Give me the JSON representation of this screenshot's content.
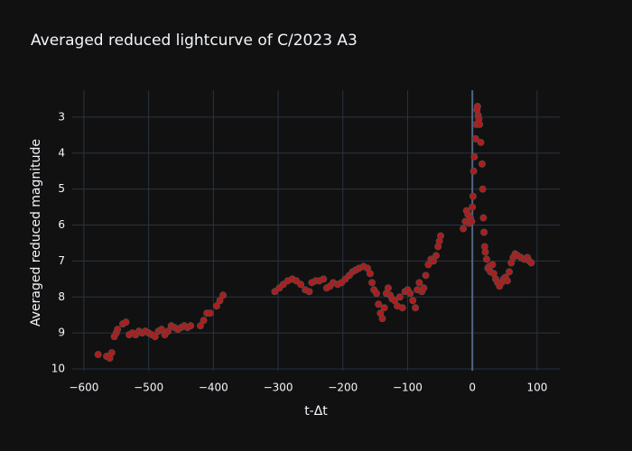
{
  "chart_data": {
    "type": "scatter",
    "title": "Averaged reduced lightcurve of C/2023 A3",
    "x_label": "t-Δt",
    "y_label": "Averaged reduced magnitude",
    "x": [
      -578,
      -565,
      -560,
      -557,
      -553,
      -550,
      -548,
      -540,
      -535,
      -530,
      -525,
      -520,
      -515,
      -510,
      -505,
      -500,
      -495,
      -490,
      -485,
      -480,
      -475,
      -470,
      -465,
      -460,
      -455,
      -450,
      -445,
      -440,
      -435,
      -420,
      -415,
      -410,
      -405,
      -395,
      -390,
      -385,
      -305,
      -298,
      -292,
      -285,
      -278,
      -272,
      -265,
      -258,
      -252,
      -248,
      -242,
      -236,
      -230,
      -225,
      -220,
      -215,
      -208,
      -202,
      -196,
      -190,
      -185,
      -180,
      -175,
      -168,
      -162,
      -158,
      -155,
      -152,
      -148,
      -145,
      -142,
      -139,
      -136,
      -133,
      -130,
      -127,
      -124,
      -120,
      -116,
      -112,
      -108,
      -104,
      -100,
      -96,
      -92,
      -88,
      -85,
      -82,
      -78,
      -75,
      -72,
      -68,
      -64,
      -60,
      -56,
      -53,
      -51,
      -49,
      -14,
      -11,
      -9,
      -7,
      -5,
      -3,
      -1,
      0,
      1,
      2,
      3,
      5,
      6,
      7,
      8,
      9,
      10,
      11,
      13,
      15,
      16,
      17,
      18,
      19,
      20,
      22,
      24,
      26,
      28,
      31,
      33,
      36,
      39,
      42,
      45,
      48,
      51,
      54,
      57,
      60,
      63,
      66,
      70,
      75,
      80,
      85,
      88,
      91
    ],
    "values": [
      9.6,
      9.65,
      9.7,
      9.55,
      9.1,
      9.0,
      8.9,
      8.75,
      8.7,
      9.05,
      9.0,
      9.05,
      8.95,
      9.0,
      8.95,
      9.0,
      9.05,
      9.1,
      8.95,
      8.9,
      9.05,
      8.95,
      8.8,
      8.85,
      8.9,
      8.85,
      8.8,
      8.85,
      8.8,
      8.8,
      8.65,
      8.45,
      8.45,
      8.25,
      8.1,
      7.95,
      7.85,
      7.75,
      7.65,
      7.55,
      7.5,
      7.55,
      7.65,
      7.8,
      7.85,
      7.6,
      7.55,
      7.55,
      7.5,
      7.75,
      7.7,
      7.6,
      7.65,
      7.6,
      7.5,
      7.4,
      7.3,
      7.25,
      7.2,
      7.15,
      7.2,
      7.35,
      7.6,
      7.8,
      7.9,
      8.2,
      8.45,
      8.6,
      8.3,
      7.9,
      7.75,
      7.95,
      8.05,
      8.1,
      8.25,
      8.0,
      8.3,
      7.85,
      7.8,
      7.9,
      8.1,
      8.3,
      7.8,
      7.6,
      7.85,
      7.75,
      7.4,
      7.1,
      6.95,
      7.0,
      6.85,
      6.6,
      6.45,
      6.3,
      6.1,
      5.9,
      5.6,
      5.7,
      5.95,
      5.8,
      5.9,
      5.5,
      5.2,
      4.5,
      4.1,
      3.6,
      3.2,
      2.8,
      2.7,
      2.95,
      3.05,
      3.2,
      3.7,
      4.3,
      5.0,
      5.8,
      6.2,
      6.6,
      6.75,
      6.95,
      7.2,
      7.15,
      7.3,
      7.1,
      7.35,
      7.5,
      7.6,
      7.7,
      7.6,
      7.5,
      7.45,
      7.55,
      7.3,
      7.05,
      6.9,
      6.8,
      6.85,
      6.9,
      6.95,
      6.9,
      7.0,
      7.05
    ],
    "color": "#b01c1c",
    "xlim": [
      -618,
      135
    ],
    "ylim": [
      10.05,
      2.25
    ],
    "xticks": [
      {
        "value": -600,
        "label": "−600"
      },
      {
        "value": -500,
        "label": "−500"
      },
      {
        "value": -400,
        "label": "−400"
      },
      {
        "value": -300,
        "label": "−300"
      },
      {
        "value": -200,
        "label": "−200"
      },
      {
        "value": -100,
        "label": "−100"
      },
      0,
      100
    ],
    "yticks": [
      3,
      4,
      5,
      6,
      7,
      8,
      9,
      10
    ],
    "grid": true
  }
}
